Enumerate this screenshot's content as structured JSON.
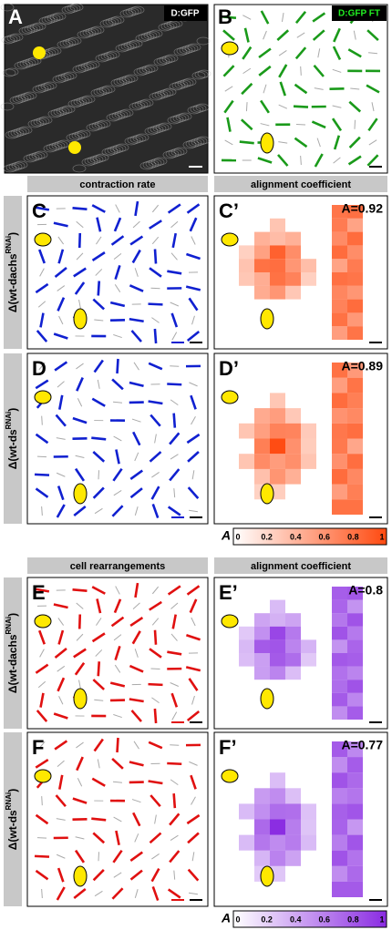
{
  "panels_top": [
    {
      "letter": "A",
      "label": "D:GFP"
    },
    {
      "letter": "B",
      "label": "D:GFP FT"
    }
  ],
  "section1": {
    "left_header": "contraction rate",
    "right_header": "alignment coefficient",
    "rows": [
      {
        "row_label": {
          "prefix": "Δ(wt-dachs",
          "sup": "RNAi",
          "suffix": ")"
        },
        "left_letter": "C",
        "right_letter": "C’",
        "coefficient": "A=0.92"
      },
      {
        "row_label": {
          "prefix": "Δ(wt-ds",
          "sup": "RNAi",
          "suffix": ")"
        },
        "left_letter": "D",
        "right_letter": "D’",
        "coefficient": "A=0.89"
      }
    ]
  },
  "colorbar1": {
    "symbol": "A",
    "ticks": [
      "0",
      "0.2",
      "0.4",
      "0.6",
      "0.8",
      "1"
    ]
  },
  "section2": {
    "left_header": "cell rearrangements",
    "right_header": "alignment coefficient",
    "rows": [
      {
        "row_label": {
          "prefix": "Δ(wt-dachs",
          "sup": "RNAi",
          "suffix": ")"
        },
        "left_letter": "E",
        "right_letter": "E’",
        "coefficient": "A=0.8"
      },
      {
        "row_label": {
          "prefix": "Δ(wt-ds",
          "sup": "RNAi",
          "suffix": ")"
        },
        "left_letter": "F",
        "right_letter": "F’",
        "coefficient": "A=0.77"
      }
    ]
  },
  "colorbar2": {
    "symbol": "A",
    "ticks": [
      "0",
      "0.2",
      "0.4",
      "0.6",
      "0.8",
      "1"
    ]
  }
}
